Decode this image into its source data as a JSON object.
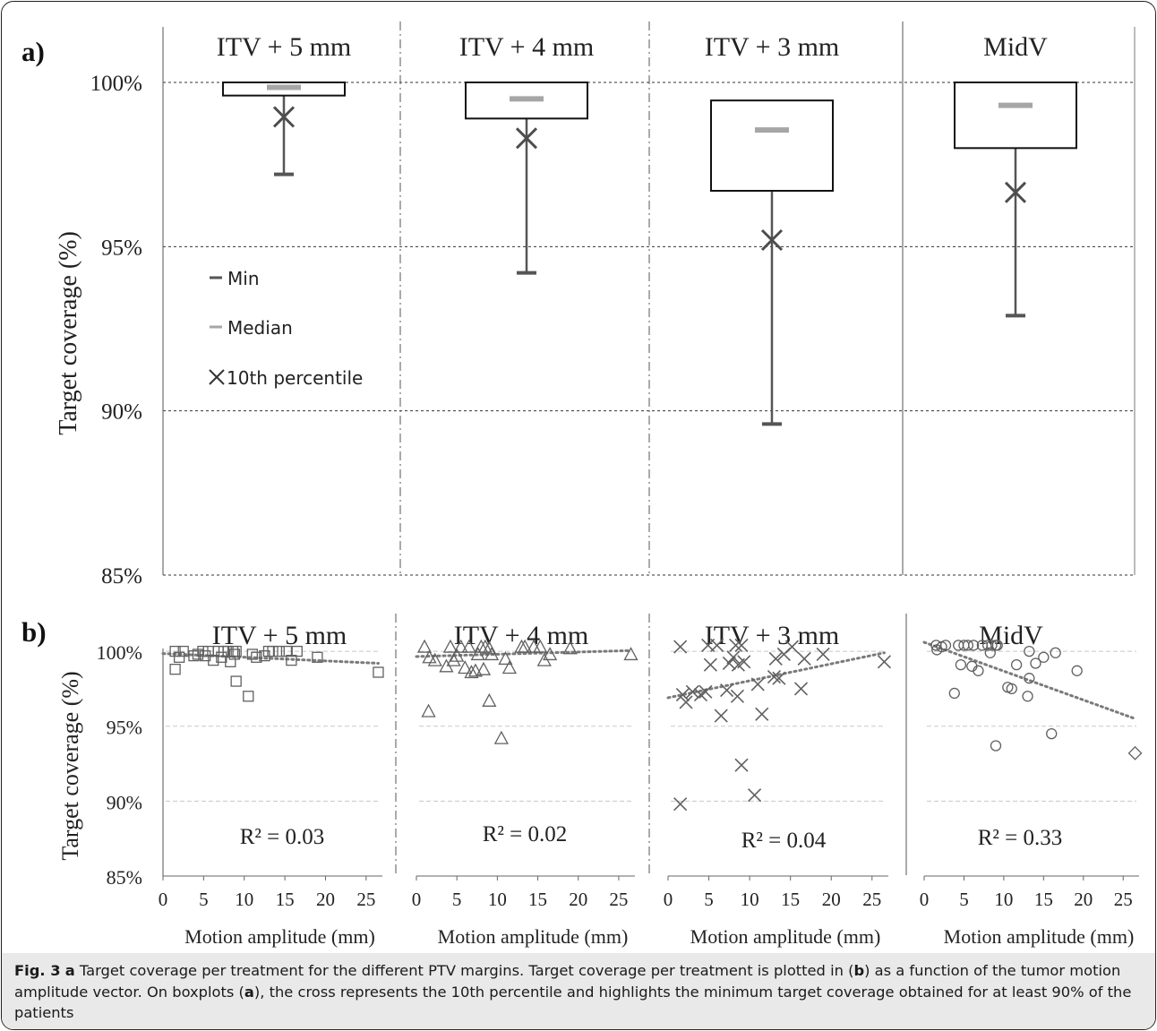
{
  "panel_a_label": "a)",
  "panel_b_label": "b)",
  "caption": {
    "fig_label": "Fig. 3",
    "parts": [
      {
        "t": " "
      },
      {
        "t": "a",
        "b": true
      },
      {
        "t": " Target coverage per treatment for the different PTV margins. Target coverage per treatment is plotted in ("
      },
      {
        "t": "b",
        "b": true
      },
      {
        "t": ") as a function of the tumor motion amplitude vector. On boxplots ("
      },
      {
        "t": "a",
        "b": true
      },
      {
        "t": "), the cross represents the 10th percentile and highlights the minimum target coverage obtained for at least 90% of the patients"
      }
    ]
  },
  "colors": {
    "box_stroke": "#111111",
    "whisker": "#555555",
    "median": "#a6a6a6",
    "cross": "#4d4d4d",
    "grid_a": "#333333",
    "grid_b": "#c8c8c8",
    "marker": "#606060",
    "trend": "#7a7a7a"
  },
  "chart_data": [
    {
      "type": "box",
      "panel": "a",
      "ylabel": "Target coverage (%)",
      "ylim": [
        85,
        100
      ],
      "yticks": [
        85,
        90,
        95,
        100
      ],
      "ytick_labels": [
        "85%",
        "90%",
        "95%",
        "100%"
      ],
      "grid": true,
      "legend": {
        "placement": "inside-left",
        "entries": [
          {
            "symbol": "min-bar",
            "label": "Min"
          },
          {
            "symbol": "median-bar",
            "label": "Median"
          },
          {
            "symbol": "cross",
            "label": "10th percentile"
          }
        ]
      },
      "groups": [
        {
          "name": "ITV + 5 mm",
          "q1": 99.6,
          "q3": 100.0,
          "median": 99.85,
          "min": 97.2,
          "p10": 98.95
        },
        {
          "name": "ITV + 4 mm",
          "q1": 98.9,
          "q3": 100.0,
          "median": 99.5,
          "min": 94.2,
          "p10": 98.3
        },
        {
          "name": "ITV + 3 mm",
          "q1": 96.7,
          "q3": 99.45,
          "median": 98.55,
          "min": 89.6,
          "p10": 95.2
        },
        {
          "name": "MidV",
          "q1": 98.0,
          "q3": 100.0,
          "median": 99.3,
          "min": 92.9,
          "p10": 96.65
        }
      ]
    },
    {
      "type": "scatter",
      "panel": "b",
      "ylabel": "Target coverage (%)",
      "xlabel": "Motion amplitude (mm)",
      "xlim": [
        0,
        27
      ],
      "xticks": [
        0,
        5,
        10,
        15,
        20,
        25
      ],
      "xtick_labels": [
        "0",
        "5",
        "10",
        "15",
        "20",
        "25"
      ],
      "ylim": [
        85,
        101.5
      ],
      "yticks": [
        85,
        90,
        95,
        100
      ],
      "ytick_labels": [
        "85%",
        "90%",
        "95%",
        "100%"
      ],
      "series": [
        {
          "name": "ITV + 5 mm",
          "marker": "square",
          "r2_label": "R² = 0.03",
          "trend": {
            "x0": 0,
            "y0": 99.85,
            "x1": 26.5,
            "y1": 99.2
          },
          "points": [
            [
              1.5,
              98.8
            ],
            [
              1.5,
              100
            ],
            [
              2,
              99.6
            ],
            [
              2.5,
              100
            ],
            [
              3.8,
              99.7
            ],
            [
              4.3,
              99.8
            ],
            [
              4.9,
              100
            ],
            [
              5.2,
              99.7
            ],
            [
              5.6,
              100
            ],
            [
              6.2,
              99.4
            ],
            [
              6.8,
              100
            ],
            [
              7.2,
              99.6
            ],
            [
              7.5,
              100
            ],
            [
              8,
              100
            ],
            [
              8.3,
              99.3
            ],
            [
              8.6,
              100
            ],
            [
              8.8,
              99.8
            ],
            [
              9,
              100
            ],
            [
              9,
              98
            ],
            [
              10.5,
              97
            ],
            [
              11,
              99.8
            ],
            [
              11.5,
              99.6
            ],
            [
              12.5,
              99.7
            ],
            [
              13,
              100
            ],
            [
              13.5,
              100
            ],
            [
              14.3,
              100
            ],
            [
              15.2,
              100
            ],
            [
              15.8,
              99.4
            ],
            [
              16.5,
              100
            ],
            [
              19,
              99.6
            ],
            [
              26.5,
              98.6
            ]
          ]
        },
        {
          "name": "ITV + 4 mm",
          "marker": "triangle",
          "r2_label": "R² = 0.02",
          "trend": {
            "x0": 0,
            "y0": 99.65,
            "x1": 26.5,
            "y1": 100.05
          },
          "points": [
            [
              1,
              100.3
            ],
            [
              1.5,
              96
            ],
            [
              1.6,
              99.6
            ],
            [
              2.3,
              99.4
            ],
            [
              3.7,
              99
            ],
            [
              4.2,
              100.3
            ],
            [
              4.6,
              99.4
            ],
            [
              5,
              99.7
            ],
            [
              5.5,
              100.3
            ],
            [
              6,
              98.9
            ],
            [
              6.5,
              100.3
            ],
            [
              6.8,
              98.6
            ],
            [
              7.3,
              98.7
            ],
            [
              7.6,
              99.8
            ],
            [
              8,
              100.3
            ],
            [
              8.3,
              98.8
            ],
            [
              8.5,
              100.3
            ],
            [
              9,
              100.2
            ],
            [
              9,
              96.7
            ],
            [
              9.3,
              99.8
            ],
            [
              10.5,
              94.2
            ],
            [
              11,
              99.5
            ],
            [
              11.5,
              98.9
            ],
            [
              13,
              100.3
            ],
            [
              13.4,
              100.3
            ],
            [
              14.5,
              100.3
            ],
            [
              15.3,
              100.3
            ],
            [
              15.8,
              99.4
            ],
            [
              16.5,
              99.8
            ],
            [
              19,
              100.2
            ],
            [
              26.5,
              99.8
            ]
          ]
        },
        {
          "name": "ITV + 3 mm",
          "marker": "cross",
          "r2_label": "R² = 0.04",
          "trend": {
            "x0": 0,
            "y0": 96.9,
            "x1": 26.5,
            "y1": 99.9
          },
          "points": [
            [
              1.5,
              100.3
            ],
            [
              1.5,
              89.8
            ],
            [
              1.8,
              97.1
            ],
            [
              2.2,
              96.6
            ],
            [
              3,
              97.3
            ],
            [
              4,
              97.1
            ],
            [
              4.6,
              97.3
            ],
            [
              4.9,
              100.4
            ],
            [
              5.2,
              99.1
            ],
            [
              6,
              100.4
            ],
            [
              6.5,
              95.7
            ],
            [
              7.2,
              97.4
            ],
            [
              7.5,
              99.2
            ],
            [
              8,
              99.6
            ],
            [
              8.3,
              100.4
            ],
            [
              8.5,
              97
            ],
            [
              8.6,
              99.1
            ],
            [
              9,
              100.4
            ],
            [
              9,
              92.4
            ],
            [
              9.3,
              99.3
            ],
            [
              10.6,
              90.4
            ],
            [
              11,
              97.8
            ],
            [
              11.5,
              95.8
            ],
            [
              13,
              98.3
            ],
            [
              13.2,
              99.5
            ],
            [
              13.6,
              98.2
            ],
            [
              14.2,
              99.8
            ],
            [
              15.2,
              100.3
            ],
            [
              16.3,
              97.5
            ],
            [
              16.7,
              99.5
            ],
            [
              19,
              99.8
            ],
            [
              26.5,
              99.3
            ]
          ]
        },
        {
          "name": "MidV",
          "marker": "circle",
          "r2_label": "R² = 0.33",
          "trend": {
            "x0": 0,
            "y0": 100.6,
            "x1": 26.5,
            "y1": 95.5
          },
          "points": [
            [
              1.5,
              100.4
            ],
            [
              1.6,
              100.1
            ],
            [
              2.2,
              100.3
            ],
            [
              2.7,
              100.4
            ],
            [
              3.8,
              97.2
            ],
            [
              4.3,
              100.4
            ],
            [
              4.6,
              99.1
            ],
            [
              5,
              100.4
            ],
            [
              5.5,
              100.4
            ],
            [
              6,
              99
            ],
            [
              6.2,
              100.4
            ],
            [
              6.8,
              98.7
            ],
            [
              7.3,
              100.4
            ],
            [
              8,
              100.4
            ],
            [
              8.3,
              99.9
            ],
            [
              8.5,
              100.4
            ],
            [
              9,
              100.4
            ],
            [
              9,
              93.7
            ],
            [
              9.2,
              100.4
            ],
            [
              10.5,
              97.6
            ],
            [
              11,
              97.5
            ],
            [
              11.6,
              99.1
            ],
            [
              13,
              97
            ],
            [
              13.2,
              98.2
            ],
            [
              13.2,
              100
            ],
            [
              14,
              99.2
            ],
            [
              15,
              99.6
            ],
            [
              16,
              94.5
            ],
            [
              16.5,
              99.9
            ],
            [
              19.2,
              98.7
            ],
            [
              26.5,
              93.2,
              "diamond"
            ]
          ]
        }
      ]
    }
  ]
}
